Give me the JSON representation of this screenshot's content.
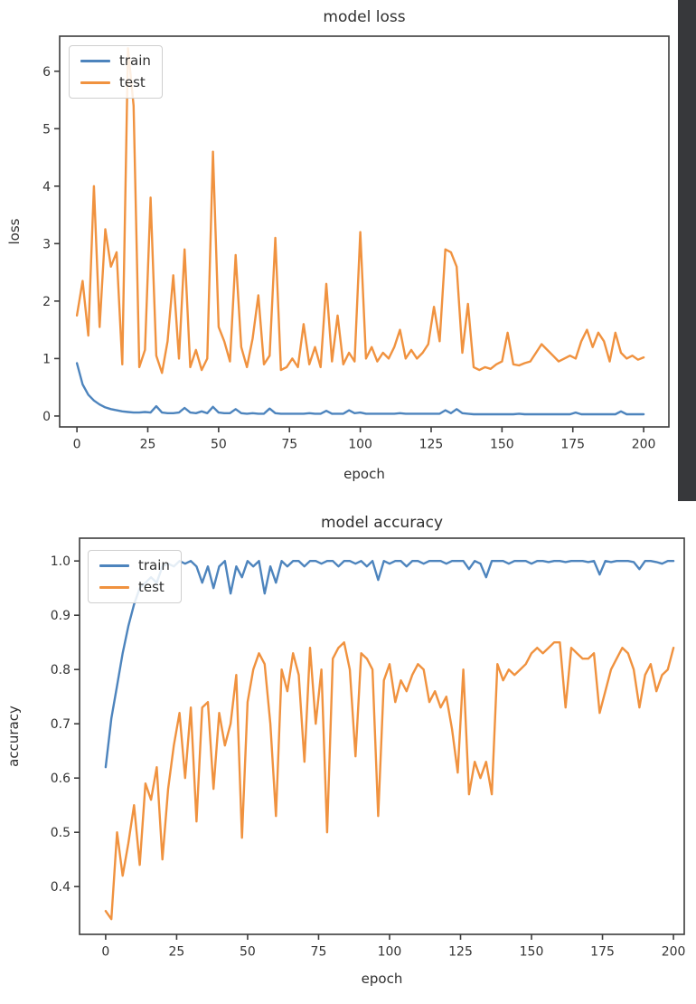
{
  "page": {
    "background": "#ffffff"
  },
  "decorations": {
    "right_dark_bar_color": "#37383b"
  },
  "chart_data": [
    {
      "id": "loss",
      "type": "line",
      "title": "model loss",
      "xlabel": "epoch",
      "ylabel": "loss",
      "grid": false,
      "legend": {
        "position": "upper left",
        "entries": [
          "train",
          "test"
        ]
      },
      "xlim": [
        -6.1,
        208.9
      ],
      "ylim": [
        -0.19,
        6.61
      ],
      "xticks": [
        0,
        25,
        50,
        75,
        100,
        125,
        150,
        175,
        200
      ],
      "xtick_labels": [
        "0",
        "25",
        "50",
        "75",
        "100",
        "125",
        "150",
        "175",
        "200"
      ],
      "yticks": [
        0,
        1,
        2,
        3,
        4,
        5,
        6
      ],
      "ytick_labels": [
        "0",
        "1",
        "2",
        "3",
        "4",
        "5",
        "6"
      ],
      "x": [
        0,
        2,
        4,
        6,
        8,
        10,
        12,
        14,
        16,
        18,
        20,
        22,
        24,
        26,
        28,
        30,
        32,
        34,
        36,
        38,
        40,
        42,
        44,
        46,
        48,
        50,
        52,
        54,
        56,
        58,
        60,
        62,
        64,
        66,
        68,
        70,
        72,
        74,
        76,
        78,
        80,
        82,
        84,
        86,
        88,
        90,
        92,
        94,
        96,
        98,
        100,
        102,
        104,
        106,
        108,
        110,
        112,
        114,
        116,
        118,
        120,
        122,
        124,
        126,
        128,
        130,
        132,
        134,
        136,
        138,
        140,
        142,
        144,
        146,
        148,
        150,
        152,
        154,
        156,
        158,
        160,
        162,
        164,
        166,
        168,
        170,
        172,
        174,
        176,
        178,
        180,
        182,
        184,
        186,
        188,
        190,
        192,
        194,
        196,
        198,
        200
      ],
      "series": [
        {
          "name": "train",
          "color": "#4d84bd",
          "values": [
            0.92,
            0.55,
            0.37,
            0.27,
            0.2,
            0.15,
            0.12,
            0.1,
            0.08,
            0.07,
            0.06,
            0.06,
            0.07,
            0.06,
            0.17,
            0.06,
            0.05,
            0.05,
            0.06,
            0.14,
            0.06,
            0.05,
            0.08,
            0.05,
            0.16,
            0.06,
            0.05,
            0.05,
            0.12,
            0.05,
            0.04,
            0.05,
            0.04,
            0.04,
            0.13,
            0.05,
            0.04,
            0.04,
            0.04,
            0.04,
            0.04,
            0.05,
            0.04,
            0.04,
            0.09,
            0.04,
            0.04,
            0.04,
            0.1,
            0.05,
            0.06,
            0.04,
            0.04,
            0.04,
            0.04,
            0.04,
            0.04,
            0.05,
            0.04,
            0.04,
            0.04,
            0.04,
            0.04,
            0.04,
            0.04,
            0.1,
            0.05,
            0.12,
            0.05,
            0.04,
            0.03,
            0.03,
            0.03,
            0.03,
            0.03,
            0.03,
            0.03,
            0.03,
            0.04,
            0.03,
            0.03,
            0.03,
            0.03,
            0.03,
            0.03,
            0.03,
            0.03,
            0.03,
            0.06,
            0.03,
            0.03,
            0.03,
            0.03,
            0.03,
            0.03,
            0.03,
            0.08,
            0.03,
            0.03,
            0.03,
            0.03
          ]
        },
        {
          "name": "test",
          "color": "#f0923f",
          "values": [
            1.75,
            2.35,
            1.4,
            4.0,
            1.55,
            3.25,
            2.6,
            2.85,
            0.9,
            6.4,
            5.4,
            0.85,
            1.15,
            3.8,
            1.05,
            0.75,
            1.3,
            2.45,
            1.0,
            2.9,
            0.85,
            1.15,
            0.8,
            1.0,
            4.6,
            1.55,
            1.3,
            0.95,
            2.8,
            1.2,
            0.85,
            1.35,
            2.1,
            0.9,
            1.05,
            3.1,
            0.8,
            0.85,
            1.0,
            0.85,
            1.6,
            0.9,
            1.2,
            0.85,
            2.3,
            0.95,
            1.75,
            0.9,
            1.1,
            0.95,
            3.2,
            1.0,
            1.2,
            0.95,
            1.1,
            1.0,
            1.2,
            1.5,
            1.0,
            1.15,
            1.0,
            1.1,
            1.25,
            1.9,
            1.3,
            2.9,
            2.85,
            2.6,
            1.1,
            1.95,
            0.85,
            0.8,
            0.85,
            0.82,
            0.9,
            0.95,
            1.45,
            0.9,
            0.88,
            0.92,
            0.95,
            1.1,
            1.25,
            1.15,
            1.05,
            0.95,
            1.0,
            1.05,
            1.0,
            1.3,
            1.5,
            1.2,
            1.45,
            1.3,
            0.95,
            1.45,
            1.1,
            1.0,
            1.05,
            0.98,
            1.02
          ]
        }
      ]
    },
    {
      "id": "accuracy",
      "type": "line",
      "title": "model accuracy",
      "xlabel": "epoch",
      "ylabel": "accuracy",
      "grid": false,
      "legend": {
        "position": "upper left",
        "entries": [
          "train",
          "test"
        ]
      },
      "xlim": [
        -9.2,
        203.8
      ],
      "ylim": [
        0.312,
        1.042
      ],
      "xticks": [
        0,
        25,
        50,
        75,
        100,
        125,
        150,
        175,
        200
      ],
      "xtick_labels": [
        "0",
        "25",
        "50",
        "75",
        "100",
        "125",
        "150",
        "175",
        "200"
      ],
      "yticks": [
        0.4,
        0.5,
        0.6,
        0.7,
        0.8,
        0.9,
        1.0
      ],
      "ytick_labels": [
        "0.4",
        "0.5",
        "0.6",
        "0.7",
        "0.8",
        "0.9",
        "1.0"
      ],
      "x": [
        0,
        2,
        4,
        6,
        8,
        10,
        12,
        14,
        16,
        18,
        20,
        22,
        24,
        26,
        28,
        30,
        32,
        34,
        36,
        38,
        40,
        42,
        44,
        46,
        48,
        50,
        52,
        54,
        56,
        58,
        60,
        62,
        64,
        66,
        68,
        70,
        72,
        74,
        76,
        78,
        80,
        82,
        84,
        86,
        88,
        90,
        92,
        94,
        96,
        98,
        100,
        102,
        104,
        106,
        108,
        110,
        112,
        114,
        116,
        118,
        120,
        122,
        124,
        126,
        128,
        130,
        132,
        134,
        136,
        138,
        140,
        142,
        144,
        146,
        148,
        150,
        152,
        154,
        156,
        158,
        160,
        162,
        164,
        166,
        168,
        170,
        172,
        174,
        176,
        178,
        180,
        182,
        184,
        186,
        188,
        190,
        192,
        194,
        196,
        198,
        200
      ],
      "series": [
        {
          "name": "train",
          "color": "#4d84bd",
          "values": [
            0.62,
            0.71,
            0.77,
            0.83,
            0.88,
            0.92,
            0.95,
            0.96,
            0.97,
            0.96,
            0.99,
            0.995,
            0.99,
            1.0,
            0.995,
            1.0,
            0.99,
            0.96,
            0.99,
            0.95,
            0.99,
            1.0,
            0.94,
            0.99,
            0.97,
            1.0,
            0.99,
            1.0,
            0.94,
            0.99,
            0.96,
            1.0,
            0.99,
            1.0,
            1.0,
            0.99,
            1.0,
            1.0,
            0.995,
            1.0,
            1.0,
            0.99,
            1.0,
            1.0,
            0.995,
            1.0,
            0.99,
            1.0,
            0.965,
            1.0,
            0.995,
            1.0,
            1.0,
            0.99,
            1.0,
            1.0,
            0.995,
            1.0,
            1.0,
            1.0,
            0.995,
            1.0,
            1.0,
            1.0,
            0.985,
            1.0,
            0.995,
            0.97,
            1.0,
            1.0,
            1.0,
            0.995,
            1.0,
            1.0,
            1.0,
            0.995,
            1.0,
            1.0,
            0.998,
            1.0,
            1.0,
            0.998,
            1.0,
            1.0,
            1.0,
            0.998,
            1.0,
            0.975,
            1.0,
            0.998,
            1.0,
            1.0,
            1.0,
            0.998,
            0.985,
            1.0,
            1.0,
            0.998,
            0.995,
            1.0,
            1.0
          ]
        },
        {
          "name": "test",
          "color": "#f0923f",
          "values": [
            0.355,
            0.34,
            0.5,
            0.42,
            0.48,
            0.55,
            0.44,
            0.59,
            0.56,
            0.62,
            0.45,
            0.58,
            0.66,
            0.72,
            0.6,
            0.73,
            0.52,
            0.73,
            0.74,
            0.58,
            0.72,
            0.66,
            0.7,
            0.79,
            0.49,
            0.74,
            0.8,
            0.83,
            0.81,
            0.7,
            0.53,
            0.8,
            0.76,
            0.83,
            0.79,
            0.63,
            0.84,
            0.7,
            0.8,
            0.5,
            0.82,
            0.84,
            0.85,
            0.8,
            0.64,
            0.83,
            0.82,
            0.8,
            0.53,
            0.78,
            0.81,
            0.74,
            0.78,
            0.76,
            0.79,
            0.81,
            0.8,
            0.74,
            0.76,
            0.73,
            0.75,
            0.69,
            0.61,
            0.8,
            0.57,
            0.63,
            0.6,
            0.63,
            0.57,
            0.81,
            0.78,
            0.8,
            0.79,
            0.8,
            0.81,
            0.83,
            0.84,
            0.83,
            0.84,
            0.85,
            0.85,
            0.73,
            0.84,
            0.83,
            0.82,
            0.82,
            0.83,
            0.72,
            0.76,
            0.8,
            0.82,
            0.84,
            0.83,
            0.8,
            0.73,
            0.79,
            0.81,
            0.76,
            0.79,
            0.8,
            0.84
          ]
        }
      ]
    }
  ]
}
